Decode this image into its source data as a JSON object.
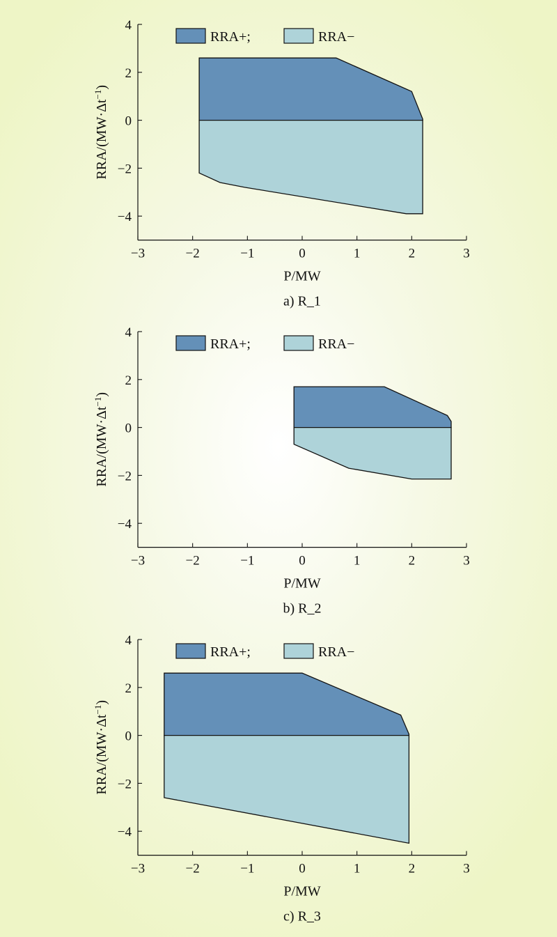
{
  "legend": {
    "upper_label": "RRA+;",
    "lower_label": "RRA−",
    "upper_color": "#6490b8",
    "lower_color": "#aed3d9"
  },
  "axes": {
    "xlabel": "P/MW",
    "ylabel_main": "RRA/(MW·Δt",
    "ylabel_sup": "−1",
    "ylabel_close": ")",
    "xticks": [
      "−3",
      "−2",
      "−1",
      "0",
      "1",
      "2",
      "3"
    ],
    "yticks": [
      "4",
      "2",
      "0",
      "−2",
      "−4"
    ]
  },
  "chart_data": [
    {
      "type": "area",
      "caption": "a) R_1",
      "xlim": [
        -3,
        3
      ],
      "ylim": [
        -5,
        4
      ],
      "series": [
        {
          "name": "RRA+",
          "points": [
            [
              -1.88,
              0
            ],
            [
              -1.88,
              2.6
            ],
            [
              0.62,
              2.6
            ],
            [
              2.0,
              1.2
            ],
            [
              2.2,
              0.05
            ],
            [
              2.2,
              0
            ]
          ]
        },
        {
          "name": "RRA−",
          "points": [
            [
              -1.88,
              0
            ],
            [
              -1.88,
              -2.2
            ],
            [
              -1.5,
              -2.6
            ],
            [
              -1.05,
              -2.8
            ],
            [
              1.9,
              -3.9
            ],
            [
              2.2,
              -3.9
            ],
            [
              2.2,
              0
            ]
          ]
        }
      ]
    },
    {
      "type": "area",
      "caption": "b) R_2",
      "xlim": [
        -3,
        3
      ],
      "ylim": [
        -5,
        4
      ],
      "series": [
        {
          "name": "RRA+",
          "points": [
            [
              -0.15,
              0
            ],
            [
              -0.15,
              1.7
            ],
            [
              1.5,
              1.7
            ],
            [
              2.65,
              0.5
            ],
            [
              2.72,
              0.25
            ],
            [
              2.72,
              0
            ]
          ]
        },
        {
          "name": "RRA−",
          "points": [
            [
              -0.15,
              0
            ],
            [
              -0.15,
              -0.7
            ],
            [
              0.85,
              -1.7
            ],
            [
              2.0,
              -2.15
            ],
            [
              2.72,
              -2.15
            ],
            [
              2.72,
              0
            ]
          ]
        }
      ]
    },
    {
      "type": "area",
      "caption": "c) R_3",
      "xlim": [
        -3,
        3
      ],
      "ylim": [
        -5,
        4
      ],
      "series": [
        {
          "name": "RRA+",
          "points": [
            [
              -2.52,
              0
            ],
            [
              -2.52,
              2.6
            ],
            [
              0.0,
              2.6
            ],
            [
              1.8,
              0.85
            ],
            [
              1.95,
              0.05
            ],
            [
              1.95,
              0
            ]
          ]
        },
        {
          "name": "RRA−",
          "points": [
            [
              -2.52,
              0
            ],
            [
              -2.52,
              -2.6
            ],
            [
              1.95,
              -4.5
            ],
            [
              1.95,
              0
            ]
          ]
        }
      ]
    }
  ]
}
